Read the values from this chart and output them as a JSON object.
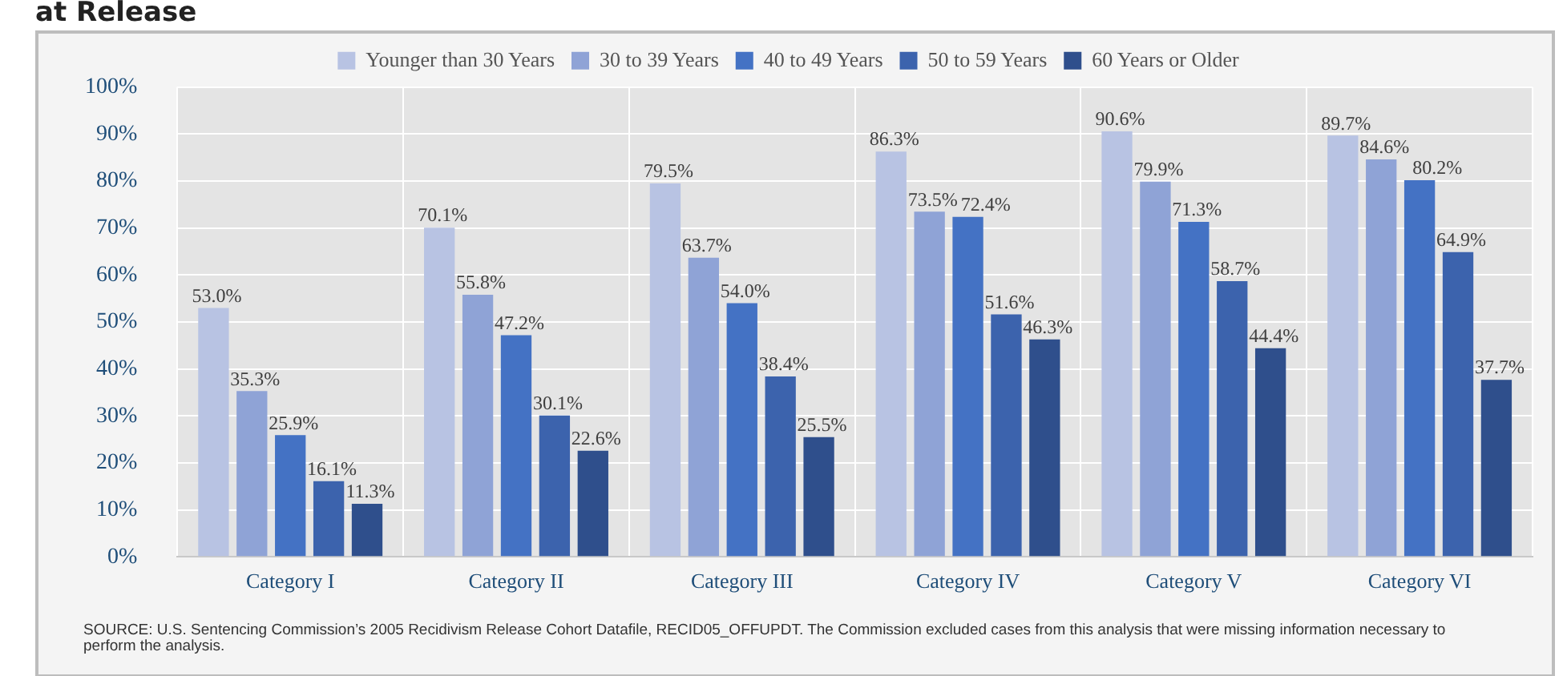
{
  "chart_data": {
    "type": "bar",
    "title": "at Release",
    "categories": [
      "Category I",
      "Category II",
      "Category III",
      "Category IV",
      "Category V",
      "Category VI"
    ],
    "series": [
      {
        "name": "Younger than 30 Years",
        "color": "#b8c3e3",
        "values": [
          53.0,
          70.1,
          79.5,
          86.3,
          90.6,
          89.7
        ],
        "value_labels": [
          "53.0%",
          "70.1%",
          "79.5%",
          "86.3%",
          "90.6%",
          "89.7%"
        ]
      },
      {
        "name": "30 to 39 Years",
        "color": "#8fa3d6",
        "values": [
          35.3,
          55.8,
          63.7,
          73.5,
          79.9,
          84.6
        ],
        "value_labels": [
          "35.3%",
          "55.8%",
          "63.7%",
          "73.5%",
          "79.9%",
          "84.6%"
        ]
      },
      {
        "name": "40 to 49 Years",
        "color": "#4472c4",
        "values": [
          25.9,
          47.2,
          54.0,
          72.4,
          71.3,
          80.2
        ],
        "value_labels": [
          "25.9%",
          "47.2%",
          "54.0%",
          "72.4%",
          "71.3%",
          "80.2%"
        ]
      },
      {
        "name": "50 to 59 Years",
        "color": "#3c63ad",
        "values": [
          16.1,
          30.1,
          38.4,
          51.6,
          58.7,
          64.9
        ],
        "value_labels": [
          "16.1%",
          "30.1%",
          "38.4%",
          "51.6%",
          "58.7%",
          "64.9%"
        ]
      },
      {
        "name": "60 Years or Older",
        "color": "#2f4f8c",
        "values": [
          11.3,
          22.6,
          25.5,
          46.3,
          44.4,
          37.7
        ],
        "value_labels": [
          "11.3%",
          "22.6%",
          "25.5%",
          "46.3%",
          "44.4%",
          "37.7%"
        ]
      }
    ],
    "ylim": [
      0,
      100
    ],
    "yticks": [
      {
        "value": 0,
        "label": "0%"
      },
      {
        "value": 10,
        "label": "10%"
      },
      {
        "value": 20,
        "label": "20%"
      },
      {
        "value": 30,
        "label": "30%"
      },
      {
        "value": 40,
        "label": "40%"
      },
      {
        "value": 50,
        "label": "50%"
      },
      {
        "value": 60,
        "label": "60%"
      },
      {
        "value": 70,
        "label": "70%"
      },
      {
        "value": 80,
        "label": "80%"
      },
      {
        "value": 90,
        "label": "90%"
      },
      {
        "value": 100,
        "label": "100%"
      }
    ],
    "grid": true,
    "legend": "top",
    "annotations": [
      "SOURCE: U.S. Sentencing Commission’s 2005 Recidivism Release Cohort Datafile, RECID05_OFFUPDT. The Commission excluded cases from this analysis that were missing information necessary to perform the analysis."
    ]
  }
}
